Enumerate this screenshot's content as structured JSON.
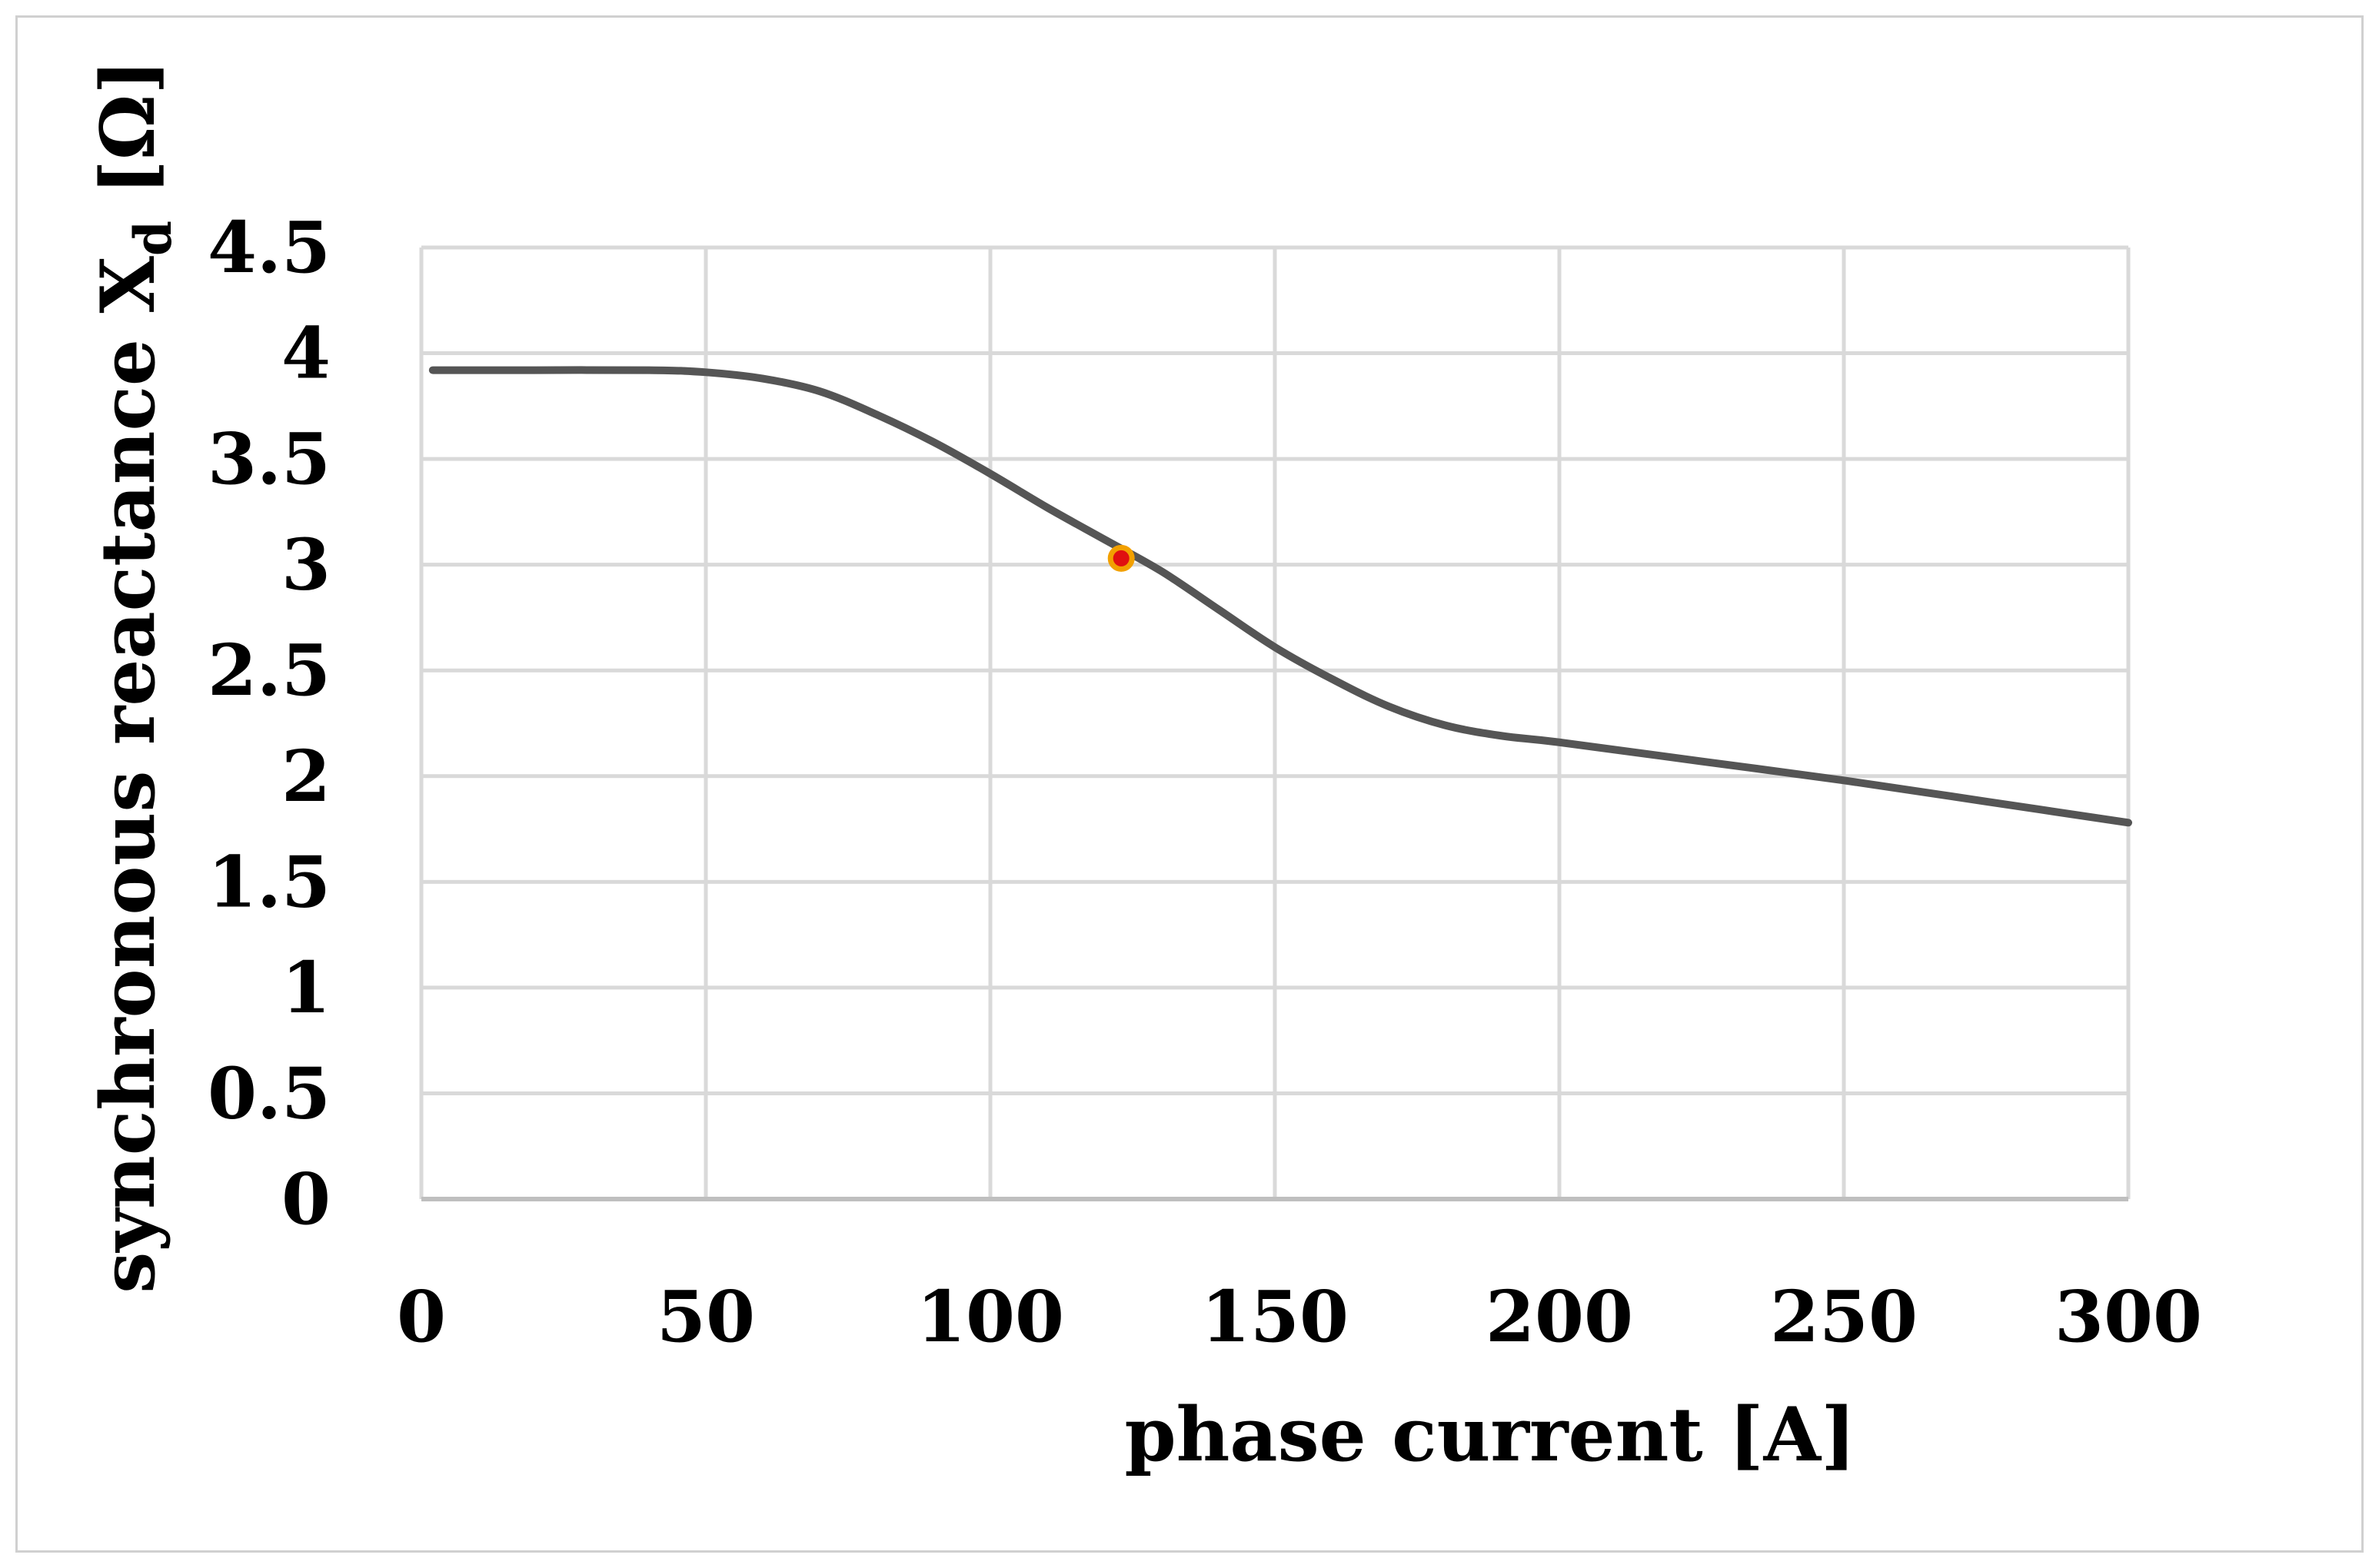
{
  "chart_data": {
    "type": "line",
    "xlabel": "phase current [A]",
    "ylabel": {
      "text": "synchronous reactance X",
      "subscript": "d",
      "unit": " [Ω]"
    },
    "xlim": [
      0,
      300
    ],
    "ylim": [
      0,
      4.5
    ],
    "x_ticks": [
      0,
      50,
      100,
      150,
      200,
      250,
      300
    ],
    "x_tick_labels": [
      "0",
      "50",
      "100",
      "150",
      "200",
      "250",
      "300"
    ],
    "y_ticks": [
      0,
      0.5,
      1,
      1.5,
      2,
      2.5,
      3,
      3.5,
      4,
      4.5
    ],
    "y_tick_labels": [
      "0",
      "0.5",
      "1",
      "1.5",
      "2",
      "2.5",
      "3",
      "3.5",
      "4",
      "4.5"
    ],
    "grid": true,
    "line_color": "#555555",
    "marker_color": "#e01010",
    "marker_edge_color": "#f2a000",
    "series": [
      {
        "x": [
          2,
          20,
          40,
          50,
          60,
          70,
          80,
          90,
          100,
          110,
          120,
          130,
          140,
          150,
          160,
          170,
          180,
          190,
          200,
          225,
          250,
          275,
          300
        ],
        "y": [
          3.92,
          3.92,
          3.92,
          3.91,
          3.88,
          3.82,
          3.71,
          3.58,
          3.43,
          3.27,
          3.12,
          2.97,
          2.79,
          2.61,
          2.46,
          2.33,
          2.24,
          2.19,
          2.16,
          2.07,
          1.98,
          1.88,
          1.78
        ]
      }
    ],
    "highlight_point": {
      "x": 123,
      "y": 3.03
    }
  }
}
